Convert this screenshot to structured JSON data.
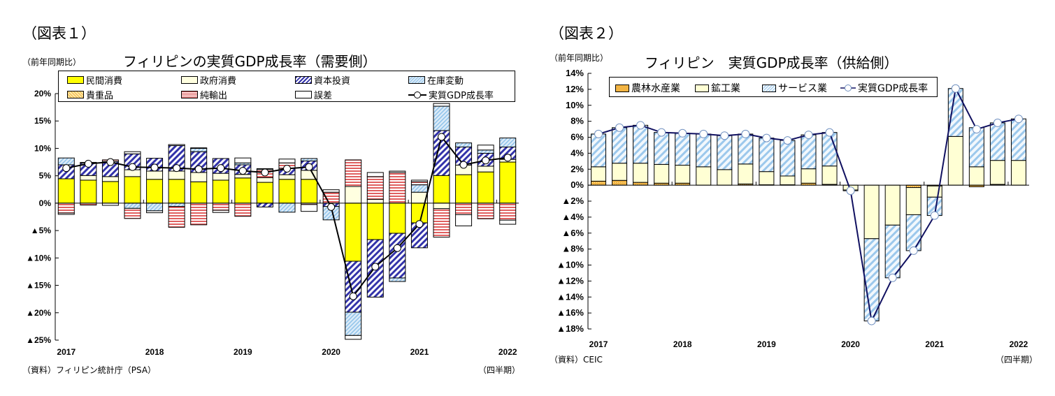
{
  "colors": {
    "private": "#ffff00",
    "govt": "#ffffe0",
    "capital": "#3333aa",
    "inventory": "#8fc3ea",
    "valuables": "#f2b443",
    "net_exports": "#e06060",
    "error": "#ffffff",
    "gdp_line1": "#000000",
    "gdp_line2": "#101060",
    "agri": "#f2b443",
    "industry": "#ffffd4",
    "services": "#9cc8ec"
  },
  "left": {
    "figure_label": "（図表１）",
    "unit": "（前年同期比）",
    "title": "フィリピンの実質GDP成長率（需要側）",
    "source": "（資料）フィリピン統計庁（PSA）",
    "period": "（四半期）",
    "legend": [
      "民間消費",
      "政府消費",
      "資本投資",
      "在庫変動",
      "貴重品",
      "純輸出",
      "誤差",
      "実質GDP成長率"
    ]
  },
  "right": {
    "figure_label": "（図表２）",
    "unit": "（前年同期比）",
    "title": "フィリピン　実質GDP成長率（供給側）",
    "source": "（資料）CEIC",
    "period": "（四半期）",
    "legend": [
      "農林水産業",
      "鉱工業",
      "サービス業",
      "実質GDP成長率"
    ]
  },
  "chart_data": [
    {
      "type": "bar",
      "stacked": true,
      "title": "フィリピンの実質GDP成長率（需要側）",
      "ylabel": "（前年同期比）",
      "ylim": [
        -25,
        20
      ],
      "yticks": [
        20,
        15,
        10,
        5,
        0,
        -5,
        -10,
        -15,
        -20,
        -25
      ],
      "ytick_labels": [
        "20%",
        "15%",
        "10%",
        "5%",
        "0%",
        "▲5%",
        "▲10%",
        "▲15%",
        "▲20%",
        "▲25%"
      ],
      "xtick_labels": [
        "2017",
        "2018",
        "2019",
        "2020",
        "2021",
        "2022"
      ],
      "categories": [
        "2017Q1",
        "2017Q2",
        "2017Q3",
        "2017Q4",
        "2018Q1",
        "2018Q2",
        "2018Q3",
        "2018Q4",
        "2019Q1",
        "2019Q2",
        "2019Q3",
        "2019Q4",
        "2020Q1",
        "2020Q2",
        "2020Q3",
        "2020Q4",
        "2021Q1",
        "2021Q2",
        "2021Q3",
        "2021Q4",
        "2022Q1"
      ],
      "legend_placement": "top",
      "series": [
        {
          "name": "民間消費",
          "key": "private",
          "values": [
            4.45,
            4.2,
            3.95,
            4.85,
            4.35,
            4.35,
            3.9,
            4.2,
            4.6,
            3.8,
            4.35,
            4.35,
            0,
            -10.6,
            -6.65,
            -5.5,
            -3.6,
            5.05,
            5.2,
            5.7,
            7.5
          ]
        },
        {
          "name": "政府消費",
          "key": "govt",
          "values": [
            0,
            0.85,
            0.9,
            1.25,
            1.5,
            1.5,
            1.7,
            1.25,
            0.65,
            0.85,
            0.85,
            1.65,
            0,
            3.05,
            0.7,
            0,
            2.0,
            -1.0,
            1.75,
            1.05,
            0.5
          ]
        },
        {
          "name": "資本投資",
          "key": "capital",
          "values": [
            2.55,
            2.25,
            2.75,
            2.9,
            2.35,
            4.65,
            3.8,
            2.7,
            1.75,
            -0.7,
            1.15,
            1.7,
            -0.6,
            -9.3,
            -10.5,
            -8.15,
            -4.55,
            8.2,
            3.3,
            2.35,
            2.25
          ]
        },
        {
          "name": "在庫変動",
          "key": "inventory",
          "values": [
            1.25,
            0,
            0,
            -0.95,
            -1.4,
            -0.6,
            0.6,
            0,
            0.35,
            0,
            -1.65,
            0.45,
            -2.45,
            -4.25,
            0,
            -0.65,
            1.35,
            4.45,
            0.75,
            0.6,
            1.65
          ]
        },
        {
          "name": "貴重品",
          "key": "valuables",
          "values": [
            0,
            0,
            0,
            0,
            0,
            0,
            0,
            0,
            0,
            0,
            0,
            0,
            0,
            0,
            0,
            0,
            0,
            0,
            0,
            0,
            0
          ]
        },
        {
          "name": "純輸出",
          "key": "net_exports",
          "values": [
            -1.8,
            -0.35,
            0.3,
            -1.85,
            0,
            -3.8,
            -3.95,
            -1.3,
            -2.4,
            1.5,
            1.0,
            -0.25,
            2.0,
            4.85,
            4.15,
            5.6,
            0.55,
            -5.2,
            -2.1,
            -2.85,
            -3.1
          ]
        },
        {
          "name": "誤差",
          "key": "error",
          "values": [
            -0.25,
            0.15,
            -0.4,
            0.4,
            -0.35,
            0.2,
            0.1,
            -0.4,
            0.9,
            0.15,
            0.7,
            -1.25,
            0.45,
            -0.7,
            0.75,
            0.25,
            0.3,
            0.5,
            -2.05,
            0.9,
            -0.75
          ]
        },
        {
          "name": "実質GDP成長率",
          "key": "gdp",
          "type": "line",
          "values": [
            6.4,
            7.2,
            7.5,
            6.6,
            6.5,
            6.4,
            6.2,
            6.4,
            5.9,
            5.6,
            6.3,
            6.6,
            -0.7,
            -17.0,
            -11.6,
            -8.2,
            -3.8,
            12.1,
            7.0,
            7.8,
            8.3
          ]
        }
      ]
    },
    {
      "type": "bar",
      "stacked": true,
      "title": "フィリピン　実質GDP成長率（供給側）",
      "ylabel": "（前年同期比）",
      "ylim": [
        -18,
        14
      ],
      "yticks": [
        14,
        12,
        10,
        8,
        6,
        4,
        2,
        0,
        -2,
        -4,
        -6,
        -8,
        -10,
        -12,
        -14,
        -16,
        -18
      ],
      "ytick_labels": [
        "14%",
        "12%",
        "10%",
        "8%",
        "6%",
        "4%",
        "2%",
        "0%",
        "▲2%",
        "▲4%",
        "▲6%",
        "▲8%",
        "▲10%",
        "▲12%",
        "▲14%",
        "▲16%",
        "▲18%"
      ],
      "xtick_labels": [
        "2017",
        "2018",
        "2019",
        "2020",
        "2021",
        "2022"
      ],
      "categories": [
        "2017Q1",
        "2017Q2",
        "2017Q3",
        "2017Q4",
        "2018Q1",
        "2018Q2",
        "2018Q3",
        "2018Q4",
        "2019Q1",
        "2019Q2",
        "2019Q3",
        "2019Q4",
        "2020Q1",
        "2020Q2",
        "2020Q3",
        "2020Q4",
        "2021Q1",
        "2021Q2",
        "2021Q3",
        "2021Q4",
        "2022Q1"
      ],
      "legend_placement": "top-left",
      "series": [
        {
          "name": "農林水産業",
          "key": "agri",
          "values": [
            0.5,
            0.6,
            0.35,
            0.25,
            0.25,
            0,
            0,
            0.15,
            0.05,
            0.05,
            0.25,
            0.1,
            0,
            0,
            0,
            -0.3,
            -0.1,
            0,
            -0.2,
            0.1,
            0
          ]
        },
        {
          "name": "鉱工業",
          "key": "industry",
          "values": [
            1.8,
            2.15,
            2.4,
            2.35,
            2.25,
            2.3,
            1.95,
            2.5,
            1.65,
            1.1,
            1.8,
            2.3,
            -0.6,
            -6.7,
            -5.0,
            -3.4,
            -1.4,
            6.1,
            2.3,
            3.0,
            3.1
          ]
        },
        {
          "name": "サービス業",
          "key": "services",
          "values": [
            4.1,
            4.45,
            4.75,
            4.0,
            4.0,
            4.1,
            4.25,
            3.75,
            4.2,
            4.45,
            4.25,
            4.2,
            -0.1,
            -10.3,
            -6.6,
            -4.5,
            -2.3,
            6.0,
            4.9,
            4.7,
            5.2
          ]
        },
        {
          "name": "実質GDP成長率",
          "key": "gdp",
          "type": "line",
          "values": [
            6.4,
            7.2,
            7.5,
            6.6,
            6.5,
            6.4,
            6.2,
            6.4,
            5.9,
            5.6,
            6.3,
            6.6,
            -0.7,
            -17.0,
            -11.6,
            -8.2,
            -3.8,
            12.1,
            7.0,
            7.8,
            8.3
          ]
        }
      ]
    }
  ]
}
